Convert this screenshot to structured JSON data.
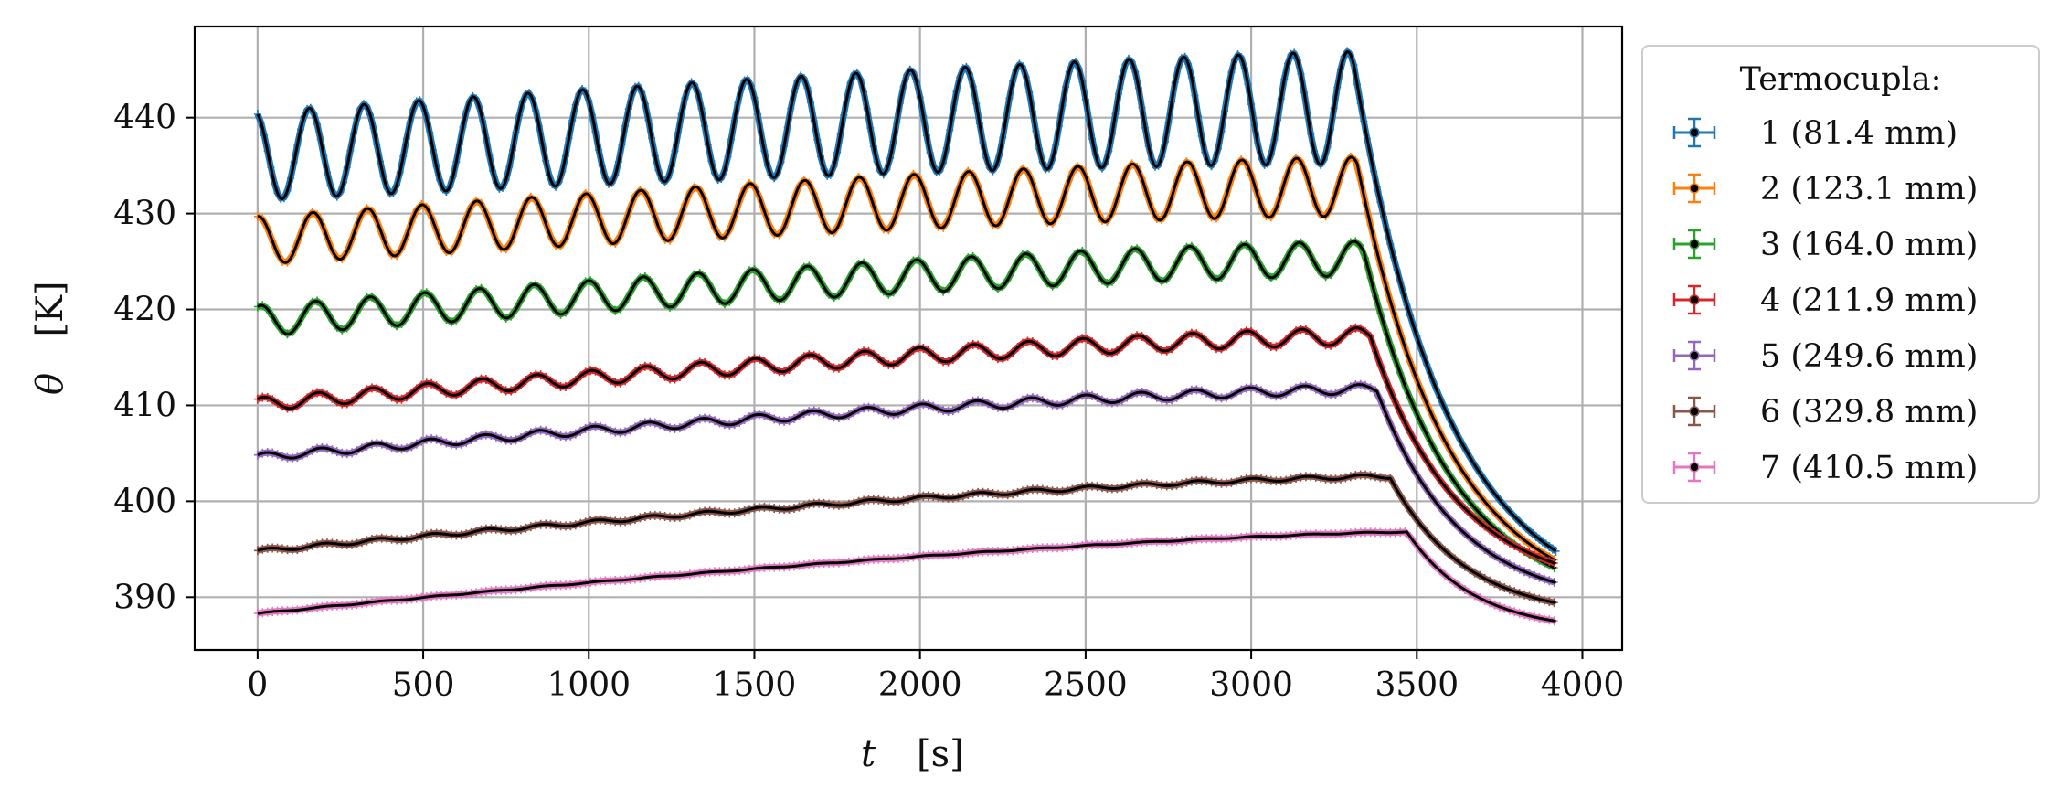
{
  "chart_data": {
    "type": "line",
    "xlabel_var": "t",
    "xlabel_unit": "[s]",
    "ylabel_var": "θ",
    "ylabel_unit": "[K]",
    "xlim": [
      -190,
      4120
    ],
    "ylim": [
      384.5,
      449.5
    ],
    "x_ticks": [
      0,
      500,
      1000,
      1500,
      2000,
      2500,
      3000,
      3500,
      4000
    ],
    "y_ticks": [
      390,
      400,
      410,
      420,
      430,
      440
    ],
    "grid": true,
    "legend": {
      "title": "Termocupla:",
      "placement": "outside-right-top"
    },
    "fit_line_color": "#000000",
    "x_end": 3920,
    "series": [
      {
        "name": "1 (81.4 mm)",
        "color": "#1f77b4",
        "base_start": 436,
        "base_end": 441,
        "amp_start": 4.6,
        "amp_end": 5.9,
        "phase": 1.9,
        "peak_time": 3310,
        "end_value": 394.8,
        "sample_step": 10
      },
      {
        "name": "2 (123.1 mm)",
        "color": "#ff7f0e",
        "base_start": 427.2,
        "base_end": 432.8,
        "amp_start": 2.5,
        "amp_end": 3.1,
        "phase": 1.5,
        "peak_time": 3320,
        "end_value": 393.8,
        "sample_step": 15
      },
      {
        "name": "3 (164.0 mm)",
        "color": "#2ca02c",
        "base_start": 418.8,
        "base_end": 425.3,
        "amp_start": 1.6,
        "amp_end": 1.8,
        "phase": 1.2,
        "peak_time": 3340,
        "end_value": 393.0,
        "sample_step": 15
      },
      {
        "name": "4 (211.9 mm)",
        "color": "#d62728",
        "base_start": 410.1,
        "base_end": 417.2,
        "amp_start": 0.7,
        "amp_end": 0.9,
        "phase": 0.9,
        "peak_time": 3360,
        "end_value": 393.5,
        "sample_step": 15
      },
      {
        "name": "5 (249.6 mm)",
        "color": "#9467bd",
        "base_start": 404.6,
        "base_end": 411.7,
        "amp_start": 0.4,
        "amp_end": 0.5,
        "phase": 0.6,
        "peak_time": 3380,
        "end_value": 391.5,
        "sample_step": 15
      },
      {
        "name": "6 (329.8 mm)",
        "color": "#8c564b",
        "base_start": 394.8,
        "base_end": 402.6,
        "amp_start": 0.2,
        "amp_end": 0.2,
        "phase": 0.3,
        "peak_time": 3420,
        "end_value": 389.4,
        "sample_step": 15
      },
      {
        "name": "7 (410.5 mm)",
        "color": "#e377c2",
        "base_start": 388.3,
        "base_end": 396.8,
        "amp_start": 0.05,
        "amp_end": 0.05,
        "phase": 0.0,
        "peak_time": 3470,
        "end_value": 387.5,
        "sample_step": 15
      }
    ],
    "oscillation_period": 165
  }
}
